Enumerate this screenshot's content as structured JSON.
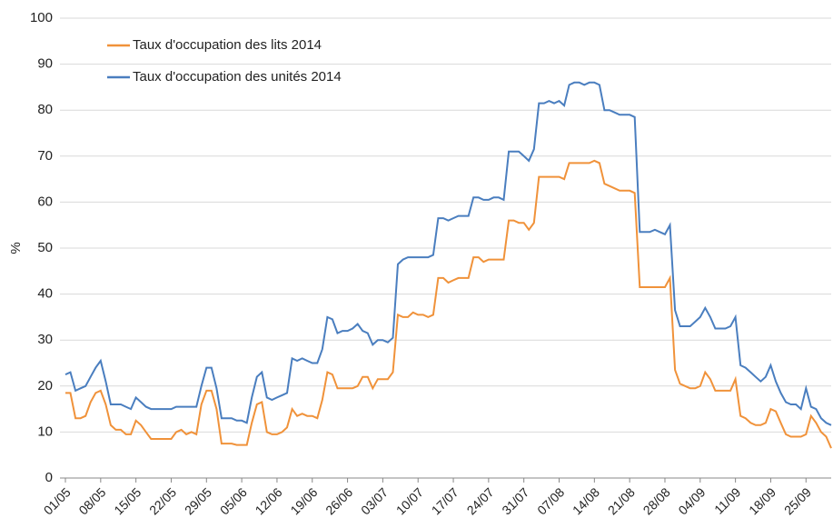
{
  "chart_data": {
    "type": "line",
    "y_label": "%",
    "categories": [
      "01/05",
      null,
      null,
      null,
      null,
      null,
      null,
      "08/05",
      null,
      null,
      null,
      null,
      null,
      null,
      "15/05",
      null,
      null,
      null,
      null,
      null,
      null,
      "22/05",
      null,
      null,
      null,
      null,
      null,
      null,
      "29/05",
      null,
      null,
      null,
      null,
      null,
      null,
      "05/06",
      null,
      null,
      null,
      null,
      null,
      null,
      "12/06",
      null,
      null,
      null,
      null,
      null,
      null,
      "19/06",
      null,
      null,
      null,
      null,
      null,
      null,
      "26/06",
      null,
      null,
      null,
      null,
      null,
      null,
      "03/07",
      null,
      null,
      null,
      null,
      null,
      null,
      "10/07",
      null,
      null,
      null,
      null,
      null,
      null,
      "17/07",
      null,
      null,
      null,
      null,
      null,
      null,
      "24/07",
      null,
      null,
      null,
      null,
      null,
      null,
      "31/07",
      null,
      null,
      null,
      null,
      null,
      null,
      "07/08",
      null,
      null,
      null,
      null,
      null,
      null,
      "14/08",
      null,
      null,
      null,
      null,
      null,
      null,
      "21/08",
      null,
      null,
      null,
      null,
      null,
      null,
      "28/08",
      null,
      null,
      null,
      null,
      null,
      null,
      "04/09",
      null,
      null,
      null,
      null,
      null,
      null,
      "11/09",
      null,
      null,
      null,
      null,
      null,
      null,
      "18/09",
      null,
      null,
      null,
      null,
      null,
      null,
      "25/09",
      null,
      null,
      null,
      null,
      null
    ],
    "series": [
      {
        "name": "Taux d'occupation des lits 2014",
        "color": "#f0923a",
        "values": [
          18.5,
          18.5,
          13,
          13,
          13.5,
          16.5,
          18.5,
          19,
          16,
          11.5,
          10.5,
          10.5,
          9.5,
          9.5,
          12.5,
          11.5,
          10,
          8.5,
          8.5,
          8.5,
          8.5,
          8.5,
          10,
          10.5,
          9.5,
          10,
          9.5,
          16,
          19,
          19,
          15,
          7.5,
          7.5,
          7.5,
          7.2,
          7.2,
          7.2,
          12,
          16,
          16.5,
          10,
          9.5,
          9.5,
          10,
          11,
          15,
          13.5,
          14,
          13.5,
          13.5,
          13,
          17,
          23,
          22.5,
          19.5,
          19.5,
          19.5,
          19.5,
          20,
          22,
          22,
          19.5,
          21.5,
          21.5,
          21.5,
          23,
          35.5,
          35,
          35,
          36,
          35.5,
          35.5,
          35,
          35.5,
          43.5,
          43.5,
          42.5,
          43,
          43.5,
          43.5,
          43.5,
          48,
          48,
          47,
          47.5,
          47.5,
          47.5,
          47.5,
          56,
          56,
          55.5,
          55.5,
          54,
          55.5,
          65.5,
          65.5,
          65.5,
          65.5,
          65.5,
          65,
          68.5,
          68.5,
          68.5,
          68.5,
          68.5,
          69,
          68.5,
          64,
          63.5,
          63,
          62.5,
          62.5,
          62.5,
          62,
          41.5,
          41.5,
          41.5,
          41.5,
          41.5,
          41.5,
          43.5,
          23.5,
          20.5,
          20,
          19.5,
          19.5,
          20,
          23,
          21.5,
          19,
          19,
          19,
          19,
          21.5,
          13.5,
          13,
          12,
          11.5,
          11.5,
          12,
          15,
          14.5,
          12,
          9.5,
          9,
          9,
          9,
          9.5,
          13.5,
          12,
          10,
          9,
          6.5
        ]
      },
      {
        "name": "Taux d'occupation des unités 2014",
        "color": "#4a7ebf",
        "values": [
          22.5,
          23,
          19,
          19.5,
          20,
          22,
          24,
          25.5,
          21,
          16,
          16,
          16,
          15.5,
          15,
          17.5,
          16.5,
          15.5,
          15,
          15,
          15,
          15,
          15,
          15.5,
          15.5,
          15.5,
          15.5,
          15.5,
          20,
          24,
          24,
          19.5,
          13,
          13,
          13,
          12.5,
          12.5,
          12,
          17.5,
          22,
          23,
          17.5,
          17,
          17.5,
          18,
          18.5,
          26,
          25.5,
          26,
          25.5,
          25,
          25,
          28,
          35,
          34.5,
          31.5,
          32,
          32,
          32.5,
          33.5,
          32,
          31.5,
          29,
          30,
          30,
          29.5,
          30.5,
          46.5,
          47.5,
          48,
          48,
          48,
          48,
          48,
          48.5,
          56.5,
          56.5,
          56,
          56.5,
          57,
          57,
          57,
          61,
          61,
          60.5,
          60.5,
          61,
          61,
          60.5,
          71,
          71,
          71,
          70,
          69,
          71.5,
          81.5,
          81.5,
          82,
          81.5,
          82,
          81,
          85.5,
          86,
          86,
          85.5,
          86,
          86,
          85.5,
          80,
          80,
          79.5,
          79,
          79,
          79,
          78.5,
          53.5,
          53.5,
          53.5,
          54,
          53.5,
          53,
          55,
          36.5,
          33,
          33,
          33,
          34,
          35,
          37,
          35,
          32.5,
          32.5,
          32.5,
          33,
          35,
          24.5,
          24,
          23,
          22,
          21,
          22,
          24.5,
          21,
          18.5,
          16.5,
          16,
          16,
          15,
          19.5,
          15.5,
          15,
          13,
          12,
          11.5
        ]
      }
    ],
    "ylim": [
      0,
      100
    ],
    "yticks": [
      0,
      10,
      20,
      30,
      40,
      50,
      60,
      70,
      80,
      90,
      100
    ],
    "grid": true,
    "legend": "upper left"
  }
}
